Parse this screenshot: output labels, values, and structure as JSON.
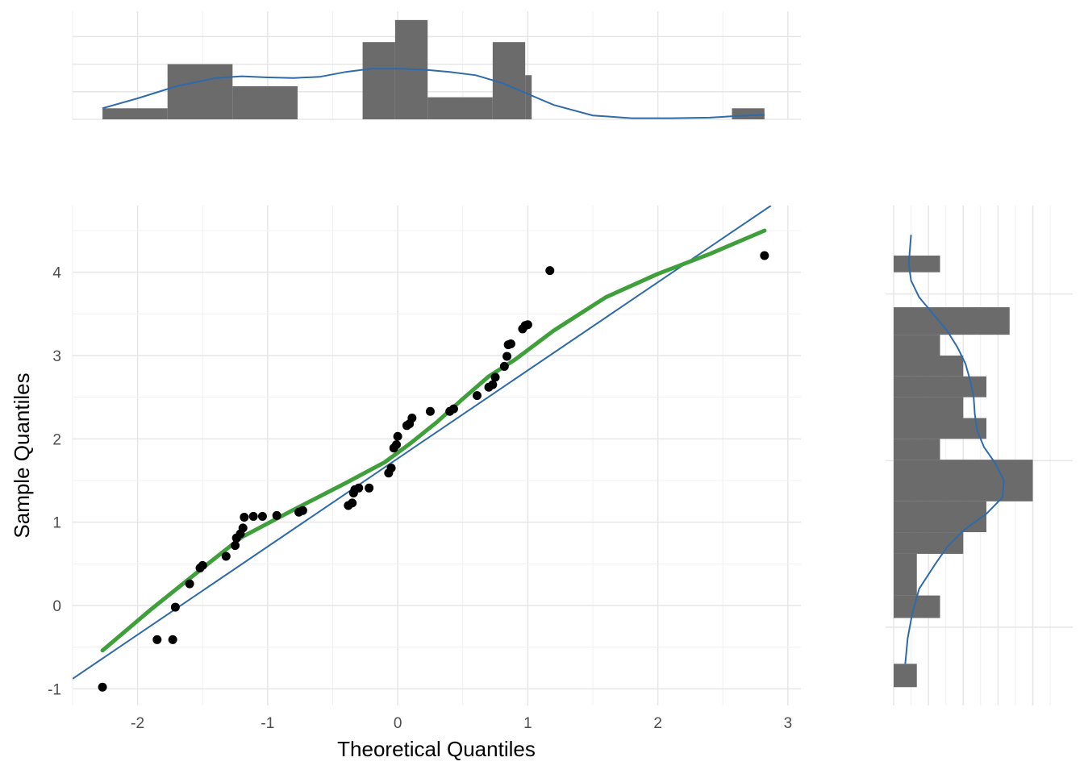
{
  "chart_data": [
    {
      "type": "scatter",
      "panel": "main",
      "xlabel": "Theoretical Quantiles",
      "ylabel": "Sample Quantiles",
      "xlim": [
        -2.5,
        3.1
      ],
      "ylim": [
        -1.2,
        4.8
      ],
      "xticks": [
        -2,
        -1,
        0,
        1,
        2,
        3
      ],
      "yticks": [
        -1,
        0,
        1,
        2,
        3,
        4
      ],
      "grid": true,
      "series": [
        {
          "type": "scatter",
          "points": [
            [
              -2.27,
              -0.98
            ],
            [
              -1.85,
              -0.41
            ],
            [
              -1.73,
              -0.41
            ],
            [
              -1.71,
              -0.02
            ],
            [
              -1.6,
              0.26
            ],
            [
              -1.52,
              0.45
            ],
            [
              -1.5,
              0.48
            ],
            [
              -1.32,
              0.59
            ],
            [
              -1.25,
              0.72
            ],
            [
              -1.24,
              0.81
            ],
            [
              -1.21,
              0.86
            ],
            [
              -1.19,
              0.93
            ],
            [
              -1.18,
              1.06
            ],
            [
              -1.11,
              1.07
            ],
            [
              -1.04,
              1.07
            ],
            [
              -0.93,
              1.08
            ],
            [
              -0.76,
              1.12
            ],
            [
              -0.73,
              1.14
            ],
            [
              -0.38,
              1.2
            ],
            [
              -0.35,
              1.23
            ],
            [
              -0.34,
              1.35
            ],
            [
              -0.33,
              1.39
            ],
            [
              -0.3,
              1.41
            ],
            [
              -0.22,
              1.41
            ],
            [
              -0.07,
              1.59
            ],
            [
              -0.05,
              1.65
            ],
            [
              -0.03,
              1.89
            ],
            [
              -0.01,
              1.93
            ],
            [
              0.0,
              2.03
            ],
            [
              0.07,
              2.16
            ],
            [
              0.09,
              2.18
            ],
            [
              0.11,
              2.25
            ],
            [
              0.25,
              2.33
            ],
            [
              0.4,
              2.33
            ],
            [
              0.43,
              2.36
            ],
            [
              0.61,
              2.52
            ],
            [
              0.7,
              2.62
            ],
            [
              0.73,
              2.65
            ],
            [
              0.75,
              2.74
            ],
            [
              0.82,
              2.87
            ],
            [
              0.84,
              2.99
            ],
            [
              0.85,
              3.13
            ],
            [
              0.87,
              3.14
            ],
            [
              0.96,
              3.32
            ],
            [
              0.98,
              3.36
            ],
            [
              1.0,
              3.37
            ],
            [
              1.17,
              4.02
            ],
            [
              2.82,
              4.2
            ]
          ]
        },
        {
          "type": "line",
          "role": "reference line",
          "color": "#2f6aa9",
          "x": [
            -2.5,
            2.87
          ],
          "y": [
            -0.88,
            4.8
          ]
        },
        {
          "type": "line",
          "role": "smooth",
          "color": "#3f9f3a",
          "x": [
            -2.27,
            -1.9,
            -1.5,
            -1.2,
            -0.8,
            -0.4,
            -0.1,
            0.1,
            0.3,
            0.5,
            0.7,
            0.9,
            1.2,
            1.6,
            2.0,
            2.4,
            2.82
          ],
          "y": [
            -0.54,
            -0.05,
            0.45,
            0.82,
            1.15,
            1.47,
            1.72,
            1.95,
            2.2,
            2.48,
            2.75,
            2.95,
            3.3,
            3.7,
            3.98,
            4.22,
            4.5
          ]
        }
      ]
    },
    {
      "type": "bar",
      "panel": "top-marginal",
      "orientation": "vertical",
      "xlim": [
        -2.5,
        3.1
      ],
      "grid": true,
      "bins": [
        [
          -2.27,
          -1.77,
          1
        ],
        [
          -1.77,
          -1.27,
          5
        ],
        [
          -1.27,
          -0.77,
          3
        ],
        [
          -0.77,
          -0.27,
          0
        ],
        [
          -0.27,
          -0.02,
          7
        ],
        [
          -0.02,
          0.23,
          9
        ],
        [
          0.23,
          0.73,
          2
        ],
        [
          0.73,
          0.98,
          7
        ],
        [
          0.98,
          1.03,
          4
        ],
        [
          1.03,
          2.57,
          0
        ],
        [
          2.57,
          2.82,
          1
        ]
      ],
      "ylim": [
        0,
        9.5
      ],
      "density": {
        "color": "#2f6aa9",
        "x": [
          -2.27,
          -2.0,
          -1.7,
          -1.4,
          -1.2,
          -1.0,
          -0.8,
          -0.6,
          -0.4,
          -0.2,
          0.0,
          0.2,
          0.4,
          0.6,
          0.8,
          1.0,
          1.2,
          1.5,
          1.8,
          2.1,
          2.4,
          2.6,
          2.82
        ],
        "y": [
          1.0,
          1.9,
          3.0,
          3.75,
          3.9,
          3.8,
          3.75,
          3.85,
          4.3,
          4.6,
          4.6,
          4.5,
          4.3,
          4.0,
          3.3,
          2.3,
          1.3,
          0.35,
          0.1,
          0.1,
          0.15,
          0.3,
          0.4
        ]
      }
    },
    {
      "type": "bar",
      "panel": "right-marginal",
      "orientation": "horizontal",
      "ylim": [
        -1.2,
        4.8
      ],
      "xlim": [
        0,
        7.2
      ],
      "grid": true,
      "bins": [
        [
          -0.98,
          -0.7,
          1
        ],
        [
          -0.7,
          -0.45,
          0
        ],
        [
          -0.45,
          -0.15,
          0
        ],
        [
          -0.15,
          0.12,
          2
        ],
        [
          0.12,
          0.62,
          1
        ],
        [
          0.62,
          0.88,
          3
        ],
        [
          0.88,
          1.25,
          4
        ],
        [
          1.25,
          1.5,
          6
        ],
        [
          1.5,
          1.75,
          6
        ],
        [
          1.75,
          2.0,
          2
        ],
        [
          2.0,
          2.25,
          4
        ],
        [
          2.25,
          2.5,
          3
        ],
        [
          2.5,
          2.75,
          4
        ],
        [
          2.75,
          3.0,
          3
        ],
        [
          3.0,
          3.25,
          2
        ],
        [
          3.25,
          3.58,
          5
        ],
        [
          3.58,
          4.0,
          0
        ],
        [
          4.0,
          4.2,
          2
        ]
      ],
      "density": {
        "color": "#2f6aa9",
        "y": [
          -0.7,
          -0.4,
          -0.1,
          0.2,
          0.5,
          0.7,
          0.9,
          1.1,
          1.3,
          1.5,
          1.7,
          1.9,
          2.1,
          2.3,
          2.5,
          2.7,
          2.9,
          3.1,
          3.3,
          3.5,
          3.7,
          3.9,
          4.1,
          4.45
        ],
        "x": [
          0.5,
          0.6,
          0.8,
          1.1,
          1.8,
          2.3,
          3.0,
          4.0,
          4.7,
          4.75,
          4.4,
          3.9,
          3.6,
          3.5,
          3.45,
          3.3,
          3.1,
          2.75,
          2.3,
          1.7,
          1.1,
          0.75,
          0.65,
          0.75
        ]
      }
    }
  ],
  "colors": {
    "points": "#000000",
    "bars": "#6b6b6b",
    "reference_line": "#2f6aa9",
    "smooth_line": "#3f9f3a",
    "density": "#2f6aa9",
    "grid": "#e6e6e6"
  }
}
